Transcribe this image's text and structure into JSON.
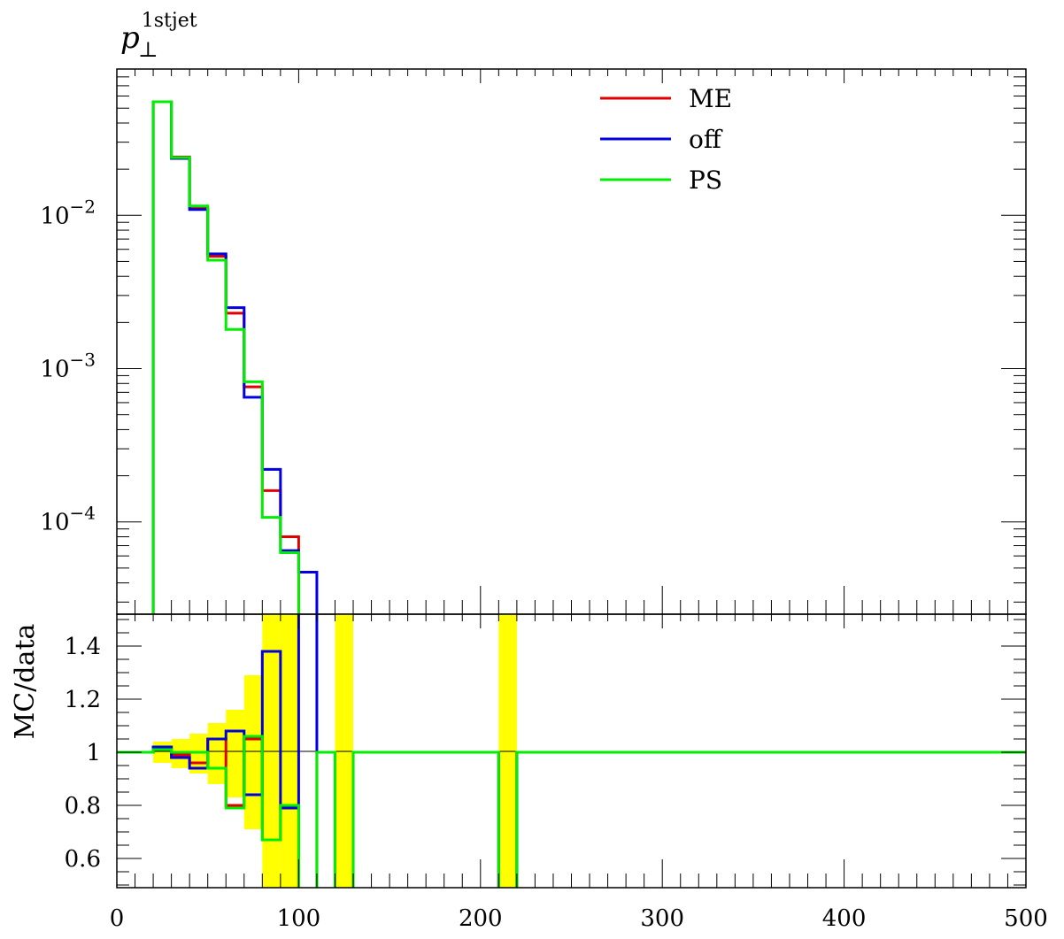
{
  "chart_data": [
    {
      "type": "line",
      "panel": "main",
      "title": "p",
      "title_sub": "⊥",
      "title_sup": "1stjet",
      "ylabel": "",
      "xlabel": "",
      "yscale": "log",
      "xlim": [
        0,
        500
      ],
      "ylim": [
        2.5e-05,
        0.09
      ],
      "grid": false,
      "legend": "top-right",
      "ytick_labels": [
        {
          "base": "10",
          "exp": "−2",
          "value": 0.01
        },
        {
          "base": "10",
          "exp": "−3",
          "value": 0.001
        },
        {
          "base": "10",
          "exp": "−4",
          "value": 0.0001
        }
      ],
      "bin_edges": [
        20,
        30,
        40,
        50,
        60,
        70,
        80,
        90,
        100,
        110
      ],
      "series": [
        {
          "name": "ME",
          "color": "#e00000",
          "values": [
            0.055,
            0.024,
            0.0112,
            0.0054,
            0.0023,
            0.00076,
            0.00016,
            8e-05,
            null
          ]
        },
        {
          "name": "off",
          "color": "#0000e0",
          "values": [
            0.055,
            0.0235,
            0.0109,
            0.0056,
            0.0025,
            0.00065,
            0.00022,
            6.5e-05,
            4.7e-05
          ]
        },
        {
          "name": "PS",
          "color": "#00ee00",
          "values": [
            0.055,
            0.0238,
            0.0115,
            0.0051,
            0.0018,
            0.00082,
            0.000107,
            6.3e-05,
            null
          ]
        }
      ]
    },
    {
      "type": "line",
      "panel": "ratio",
      "ylabel": "MC/data",
      "xlabel": "",
      "xlim": [
        0,
        500
      ],
      "ylim": [
        0.49,
        1.52
      ],
      "grid": false,
      "x_ticks": [
        0,
        100,
        200,
        300,
        400,
        500
      ],
      "x_tick_labels": [
        "0",
        "100",
        "200",
        "300",
        "400",
        "500"
      ],
      "y_ticks": [
        0.6,
        0.8,
        1.0,
        1.2,
        1.4
      ],
      "y_tick_labels": [
        "0.6",
        "0.8",
        "1",
        "1.2",
        "1.4"
      ],
      "band_color": "#ffff00",
      "error_band": [
        {
          "x0": 20,
          "x1": 30,
          "lo": 0.96,
          "hi": 1.04
        },
        {
          "x0": 30,
          "x1": 40,
          "lo": 0.94,
          "hi": 1.05
        },
        {
          "x0": 40,
          "x1": 50,
          "lo": 0.92,
          "hi": 1.07
        },
        {
          "x0": 50,
          "x1": 60,
          "lo": 0.88,
          "hi": 1.11
        },
        {
          "x0": 60,
          "x1": 70,
          "lo": 0.83,
          "hi": 1.16
        },
        {
          "x0": 70,
          "x1": 80,
          "lo": 0.71,
          "hi": 1.29
        },
        {
          "x0": 80,
          "x1": 90,
          "lo": 0.49,
          "hi": 1.52
        },
        {
          "x0": 90,
          "x1": 100,
          "lo": 0.49,
          "hi": 1.52
        },
        {
          "x0": 120,
          "x1": 130,
          "lo": 0.49,
          "hi": 1.52
        },
        {
          "x0": 210,
          "x1": 220,
          "lo": 0.49,
          "hi": 1.52
        }
      ],
      "series": [
        {
          "name": "ME",
          "color": "#e00000",
          "points": [
            [
              0,
              1
            ],
            [
              20,
              1
            ],
            [
              20,
              1.02
            ],
            [
              30,
              1.02
            ],
            [
              30,
              0.99
            ],
            [
              40,
              0.99
            ],
            [
              40,
              0.96
            ],
            [
              50,
              0.96
            ],
            [
              50,
              1.05
            ],
            [
              60,
              1.05
            ],
            [
              60,
              0.8
            ],
            [
              70,
              0.8
            ],
            [
              70,
              1.05
            ],
            [
              80,
              1.05
            ],
            [
              80,
              0.67
            ],
            [
              90,
              0.67
            ],
            [
              90,
              0.8
            ],
            [
              100,
              0.8
            ],
            [
              100,
              0.3
            ],
            [
              110,
              0.3
            ],
            [
              110,
              1
            ],
            [
              120,
              1
            ],
            [
              120,
              0.3
            ],
            [
              130,
              0.3
            ],
            [
              130,
              1
            ],
            [
              210,
              1
            ],
            [
              210,
              0.3
            ],
            [
              220,
              0.3
            ],
            [
              220,
              1
            ],
            [
              500,
              1
            ]
          ]
        },
        {
          "name": "off",
          "color": "#0000e0",
          "points": [
            [
              0,
              1
            ],
            [
              20,
              1
            ],
            [
              20,
              1.02
            ],
            [
              30,
              1.02
            ],
            [
              30,
              0.98
            ],
            [
              40,
              0.98
            ],
            [
              40,
              0.94
            ],
            [
              50,
              0.94
            ],
            [
              50,
              1.05
            ],
            [
              60,
              1.05
            ],
            [
              60,
              1.08
            ],
            [
              70,
              1.08
            ],
            [
              70,
              0.84
            ],
            [
              80,
              0.84
            ],
            [
              80,
              1.38
            ],
            [
              90,
              1.38
            ],
            [
              90,
              0.79
            ],
            [
              100,
              0.79
            ],
            [
              100,
              1.55
            ],
            [
              110,
              1.55
            ],
            [
              110,
              1
            ],
            [
              120,
              1
            ],
            [
              120,
              0.3
            ],
            [
              130,
              0.3
            ],
            [
              130,
              1
            ],
            [
              210,
              1
            ],
            [
              210,
              0.3
            ],
            [
              220,
              0.3
            ],
            [
              220,
              1
            ],
            [
              500,
              1
            ]
          ]
        },
        {
          "name": "PS",
          "color": "#00ee00",
          "points": [
            [
              0,
              1
            ],
            [
              20,
              1
            ],
            [
              20,
              1.01
            ],
            [
              30,
              1.01
            ],
            [
              30,
              1.0
            ],
            [
              40,
              1.0
            ],
            [
              40,
              1.0
            ],
            [
              50,
              1.0
            ],
            [
              50,
              0.94
            ],
            [
              60,
              0.94
            ],
            [
              60,
              0.79
            ],
            [
              70,
              0.79
            ],
            [
              70,
              1.06
            ],
            [
              80,
              1.06
            ],
            [
              80,
              0.67
            ],
            [
              90,
              0.67
            ],
            [
              90,
              0.8
            ],
            [
              100,
              0.8
            ],
            [
              100,
              0.3
            ],
            [
              110,
              0.3
            ],
            [
              110,
              1
            ],
            [
              120,
              1
            ],
            [
              120,
              0.3
            ],
            [
              130,
              0.3
            ],
            [
              130,
              1
            ],
            [
              210,
              1
            ],
            [
              210,
              0.3
            ],
            [
              220,
              0.3
            ],
            [
              220,
              1
            ],
            [
              500,
              1
            ]
          ]
        }
      ]
    }
  ]
}
